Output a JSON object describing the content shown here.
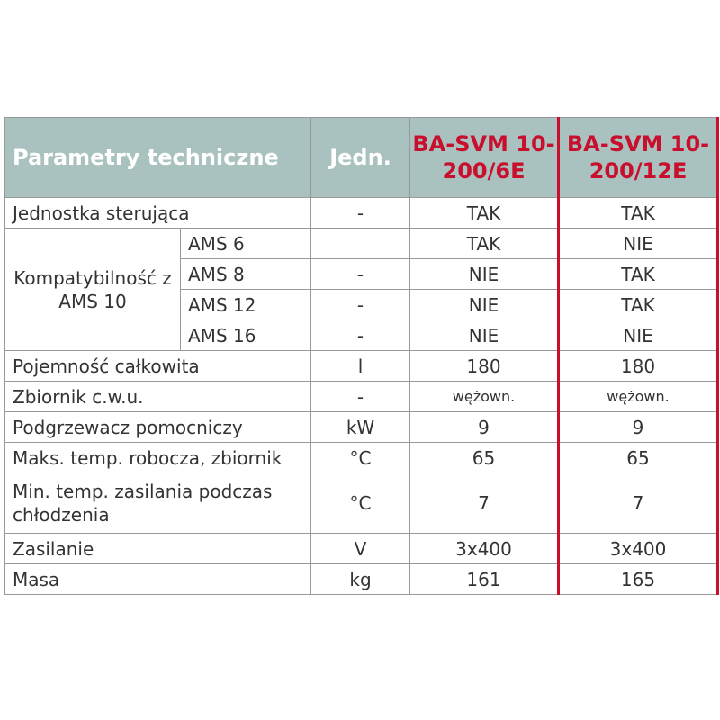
{
  "table": {
    "header": [
      "Parametry techniczne",
      "Jedn.",
      "BA-SVM 10-200/6E",
      "BA-SVM 10-200/12E"
    ],
    "rows": [
      {
        "label": "Jednostka sterująca",
        "unit": "-",
        "values": [
          "TAK",
          "TAK"
        ]
      },
      {
        "label": "Kompatybilność z AMS 10",
        "items": [
          {
            "label": "AMS 6",
            "values": [
              "TAK",
              "NIE"
            ]
          },
          {
            "label": "AMS 8",
            "unit": "-",
            "values": [
              "NIE",
              "TAK"
            ]
          },
          {
            "label": "AMS 12",
            "unit": "-",
            "values": [
              "NIE",
              "TAK"
            ]
          },
          {
            "label": "AMS 16",
            "unit": "-",
            "values": [
              "NIE",
              "NIE"
            ]
          }
        ]
      },
      {
        "label": "Pojemność całkowita",
        "unit": "l",
        "values": [
          "180",
          "180"
        ]
      },
      {
        "label": "Zbiornik c.w.u.",
        "unit": "-",
        "values": [
          "wężown.",
          "wężown."
        ]
      },
      {
        "label": "Podgrzewacz pomocniczy",
        "unit": "kW",
        "values": [
          "9",
          "9"
        ]
      },
      {
        "label": "Maks. temp. robocza, zbiornik",
        "unit": "°C",
        "values": [
          "65",
          "65"
        ]
      },
      {
        "label": "Min. temp. zasilania podczas chłodzenia",
        "unit": "°C",
        "values": [
          "7",
          "7"
        ]
      },
      {
        "label": "Zasilanie",
        "unit": "V",
        "values": [
          "3x400",
          "3x400"
        ]
      },
      {
        "label": "Masa",
        "unit": "kg",
        "values": [
          "161",
          "165"
        ]
      }
    ]
  }
}
